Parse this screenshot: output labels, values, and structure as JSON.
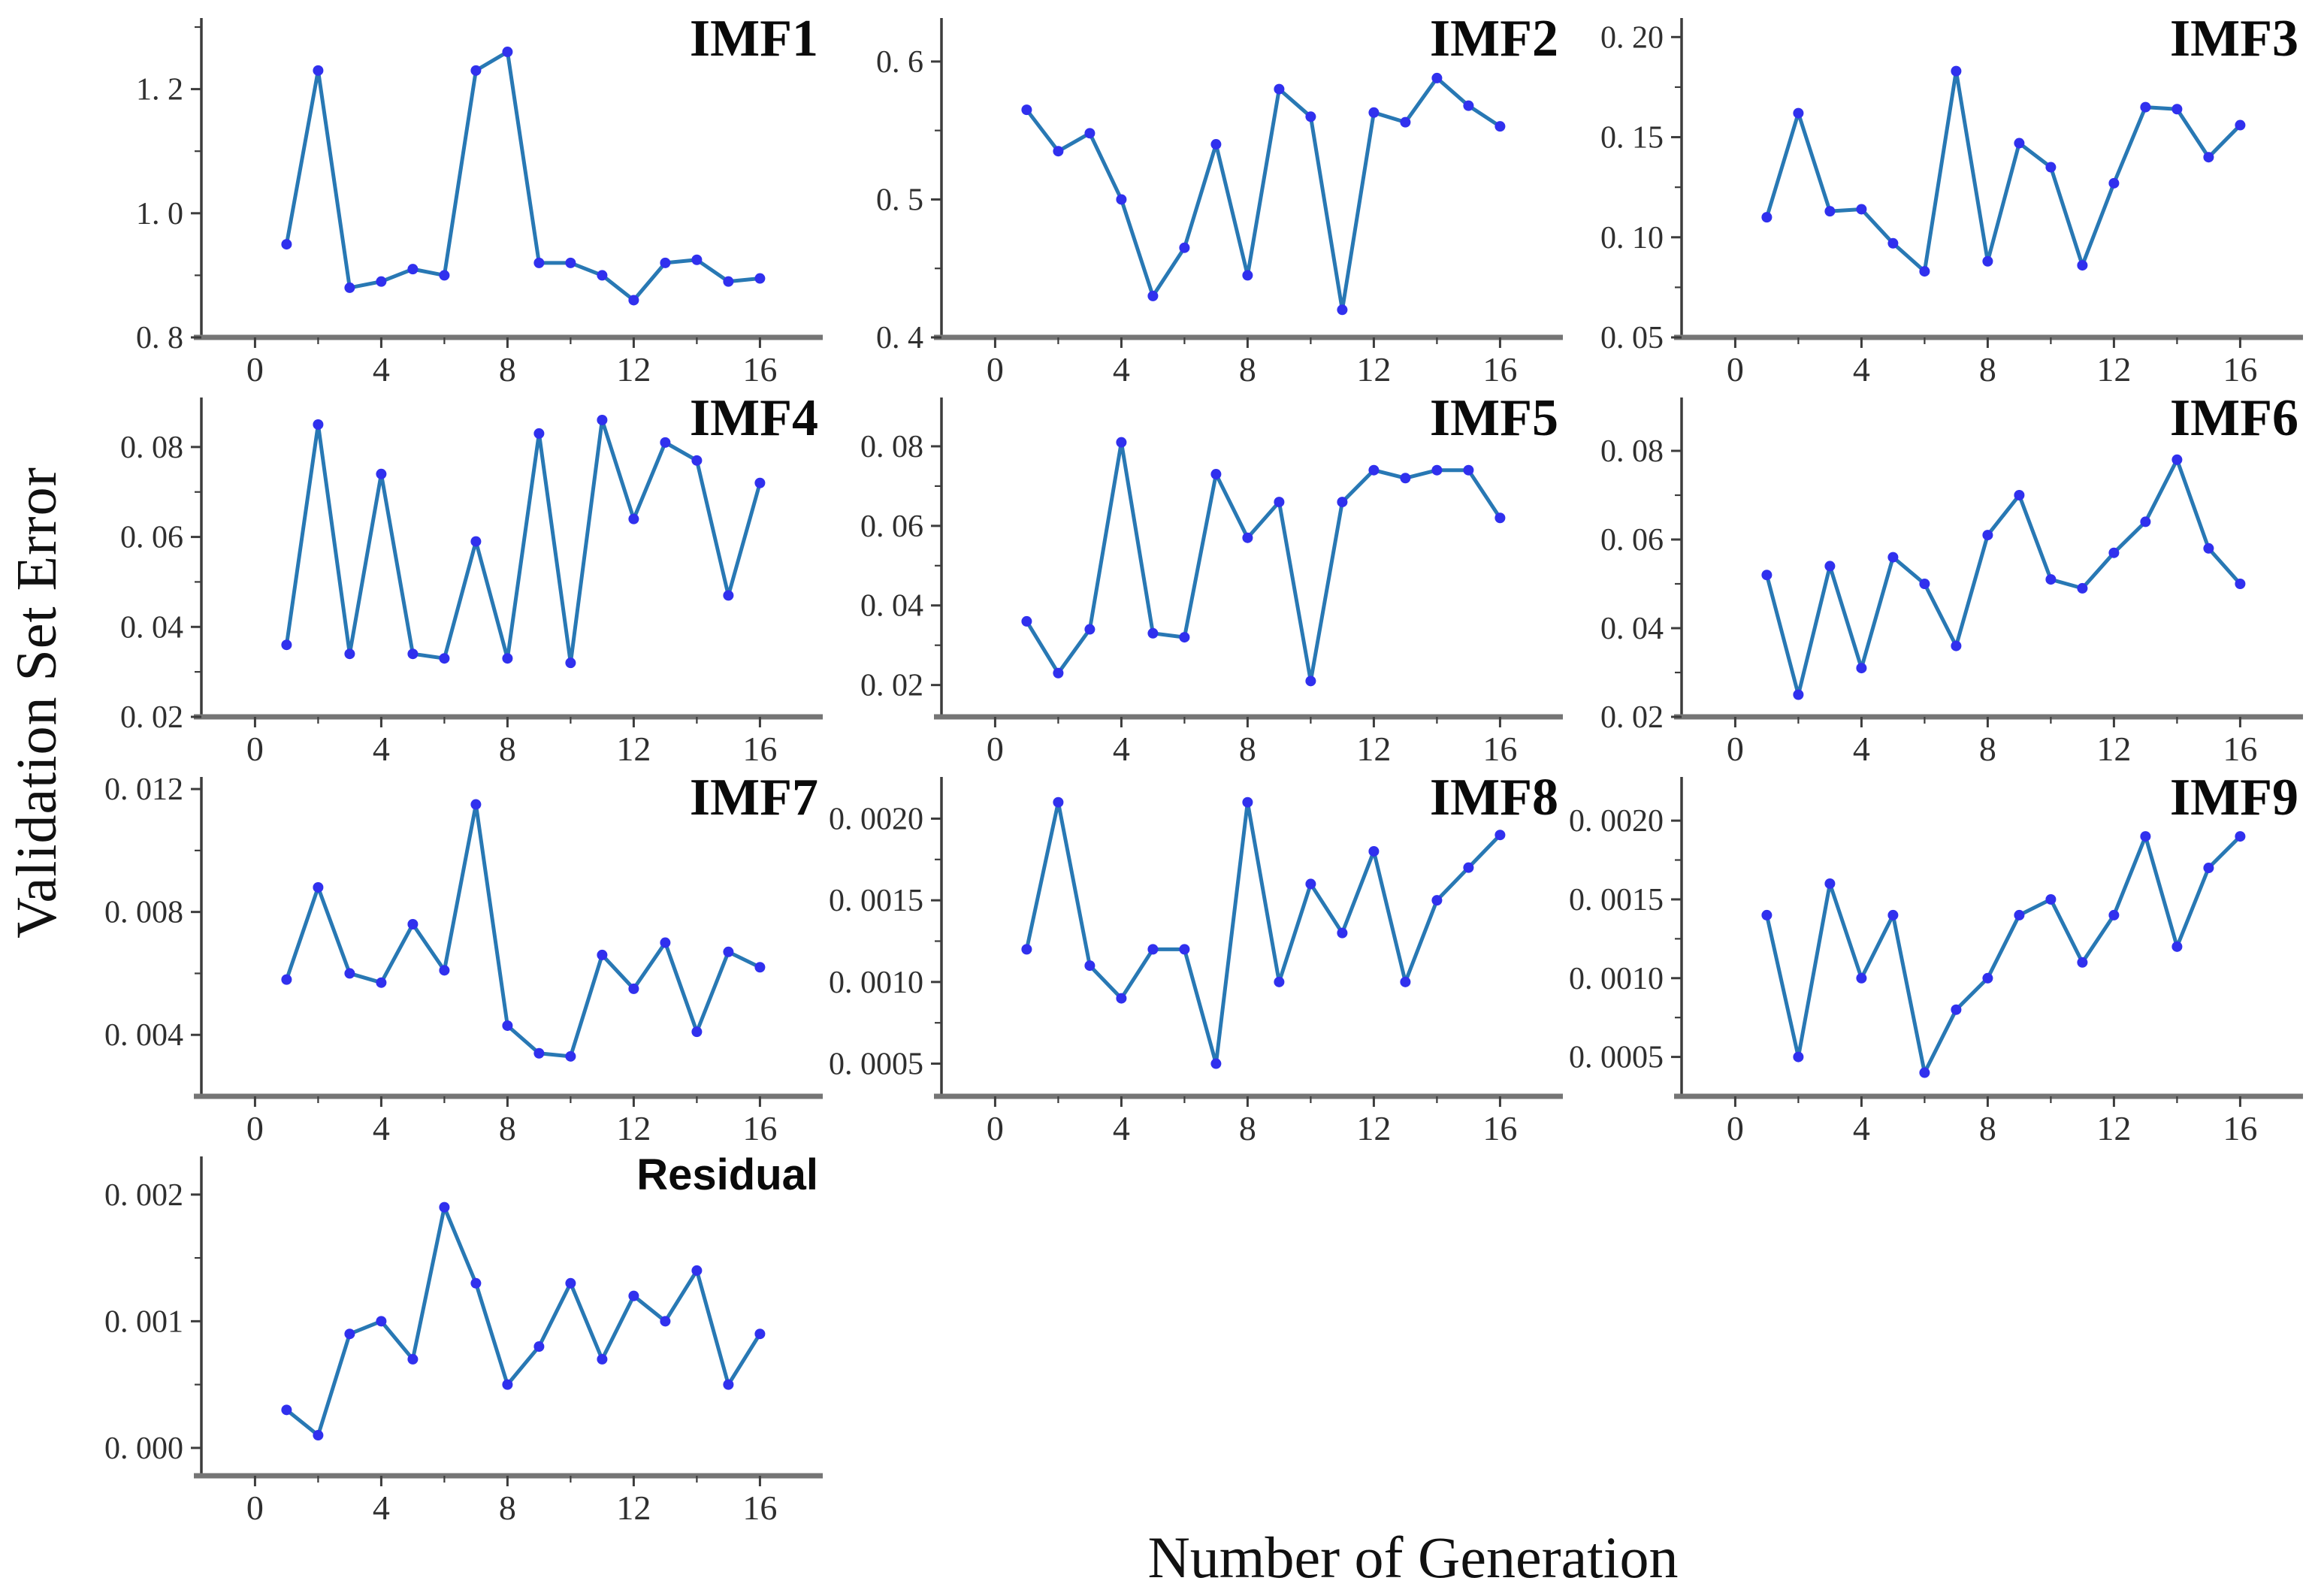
{
  "figure": {
    "ylabel": "Validation Set Error",
    "xlabel": "Number of Generation",
    "x_values": [
      1,
      2,
      3,
      4,
      5,
      6,
      7,
      8,
      9,
      10,
      11,
      12,
      13,
      14,
      15,
      16
    ],
    "xticks": [
      0,
      4,
      8,
      12,
      16
    ],
    "xtick_labels": [
      "0",
      "4",
      "8",
      "12",
      "16"
    ],
    "xlim": [
      -1.7,
      17.8
    ],
    "colors": {
      "line": "#2878b4",
      "marker": "#3030ee",
      "spine": "#3c3c3c",
      "baseline": "#757575",
      "tick_text": "#2f2f2f",
      "title": "#0a0a0a",
      "background": "#ffffff"
    }
  },
  "chart_data": [
    {
      "type": "line",
      "title": "IMF1",
      "title_style": "serif",
      "ylim": [
        0.8,
        1.3
      ],
      "yticks": [
        0.8,
        1.0,
        1.2
      ],
      "ytick_labels": [
        "0. 8",
        "1. 0",
        "1. 2"
      ],
      "values": [
        0.95,
        1.23,
        0.88,
        0.89,
        0.91,
        0.9,
        1.23,
        1.26,
        0.92,
        0.92,
        0.9,
        0.86,
        0.92,
        0.925,
        0.89,
        0.895
      ]
    },
    {
      "type": "line",
      "title": "IMF2",
      "title_style": "serif",
      "ylim": [
        0.4,
        0.625
      ],
      "yticks": [
        0.4,
        0.5,
        0.6
      ],
      "ytick_labels": [
        "0. 4",
        "0. 5",
        "0. 6"
      ],
      "values": [
        0.565,
        0.535,
        0.548,
        0.5,
        0.43,
        0.465,
        0.54,
        0.445,
        0.58,
        0.56,
        0.42,
        0.563,
        0.556,
        0.588,
        0.568,
        0.553
      ]
    },
    {
      "type": "line",
      "title": "IMF3",
      "title_style": "serif",
      "ylim": [
        0.05,
        0.205
      ],
      "yticks": [
        0.05,
        0.1,
        0.15,
        0.2
      ],
      "ytick_labels": [
        "0. 05",
        "0. 10",
        "0. 15",
        "0. 20"
      ],
      "values": [
        0.11,
        0.162,
        0.113,
        0.114,
        0.097,
        0.083,
        0.183,
        0.088,
        0.147,
        0.135,
        0.086,
        0.127,
        0.165,
        0.164,
        0.14,
        0.156
      ]
    },
    {
      "type": "line",
      "title": "IMF4",
      "title_style": "serif",
      "ylim": [
        0.02,
        0.089
      ],
      "yticks": [
        0.02,
        0.04,
        0.06,
        0.08
      ],
      "ytick_labels": [
        "0. 02",
        "0. 04",
        "0. 06",
        "0. 08"
      ],
      "values": [
        0.036,
        0.085,
        0.034,
        0.074,
        0.034,
        0.033,
        0.059,
        0.033,
        0.083,
        0.032,
        0.086,
        0.064,
        0.081,
        0.077,
        0.047,
        0.072
      ]
    },
    {
      "type": "line",
      "title": "IMF5",
      "title_style": "serif",
      "ylim": [
        0.012,
        0.09
      ],
      "yticks": [
        0.02,
        0.04,
        0.06,
        0.08
      ],
      "ytick_labels": [
        "0. 02",
        "0. 04",
        "0. 06",
        "0. 08"
      ],
      "values": [
        0.036,
        0.023,
        0.034,
        0.081,
        0.033,
        0.032,
        0.073,
        0.057,
        0.066,
        0.021,
        0.066,
        0.074,
        0.072,
        0.074,
        0.074,
        0.062
      ]
    },
    {
      "type": "line",
      "title": "IMF6",
      "title_style": "serif",
      "ylim": [
        0.02,
        0.09
      ],
      "yticks": [
        0.02,
        0.04,
        0.06,
        0.08
      ],
      "ytick_labels": [
        "0. 02",
        "0. 04",
        "0. 06",
        "0. 08"
      ],
      "values": [
        0.052,
        0.025,
        0.054,
        0.031,
        0.056,
        0.05,
        0.036,
        0.061,
        0.07,
        0.051,
        0.049,
        0.057,
        0.064,
        0.078,
        0.058,
        0.05
      ]
    },
    {
      "type": "line",
      "title": "IMF7",
      "title_style": "serif",
      "ylim": [
        0.002,
        0.0121
      ],
      "yticks": [
        0.004,
        0.008,
        0.012
      ],
      "ytick_labels": [
        "0. 004",
        "0. 008",
        "0. 012"
      ],
      "values": [
        0.0058,
        0.0088,
        0.006,
        0.0057,
        0.0076,
        0.0061,
        0.0115,
        0.0043,
        0.0034,
        0.0033,
        0.0066,
        0.0055,
        0.007,
        0.0041,
        0.0067,
        0.0062
      ]
    },
    {
      "type": "line",
      "title": "IMF8",
      "title_style": "serif",
      "ylim": [
        0.0003,
        0.0022
      ],
      "yticks": [
        0.0005,
        0.001,
        0.0015,
        0.002
      ],
      "ytick_labels": [
        "0. 0005",
        "0. 0010",
        "0. 0015",
        "0. 0020"
      ],
      "values": [
        0.0012,
        0.0021,
        0.0011,
        0.0009,
        0.0012,
        0.0012,
        0.0005,
        0.0021,
        0.001,
        0.0016,
        0.0013,
        0.0018,
        0.001,
        0.0015,
        0.0017,
        0.0019
      ]
    },
    {
      "type": "line",
      "title": "IMF9",
      "title_style": "serif",
      "ylim": [
        0.00025,
        0.00222
      ],
      "yticks": [
        0.0005,
        0.001,
        0.0015,
        0.002
      ],
      "ytick_labels": [
        "0. 0005",
        "0. 0010",
        "0. 0015",
        "0. 0020"
      ],
      "values": [
        0.0014,
        0.0005,
        0.0016,
        0.001,
        0.0014,
        0.0004,
        0.0008,
        0.001,
        0.0014,
        0.0015,
        0.0011,
        0.0014,
        0.0019,
        0.0012,
        0.0017,
        0.0019
      ]
    },
    {
      "type": "line",
      "title": "Residual",
      "title_style": "sans",
      "ylim": [
        -0.00022,
        0.00223
      ],
      "yticks": [
        0.0,
        0.001,
        0.002
      ],
      "ytick_labels": [
        "0. 000",
        "0. 001",
        "0. 002"
      ],
      "values": [
        0.0003,
        0.0001,
        0.0009,
        0.001,
        0.0007,
        0.0019,
        0.0013,
        0.0005,
        0.0008,
        0.0013,
        0.0007,
        0.0012,
        0.001,
        0.0014,
        0.0005,
        0.0009
      ]
    }
  ]
}
